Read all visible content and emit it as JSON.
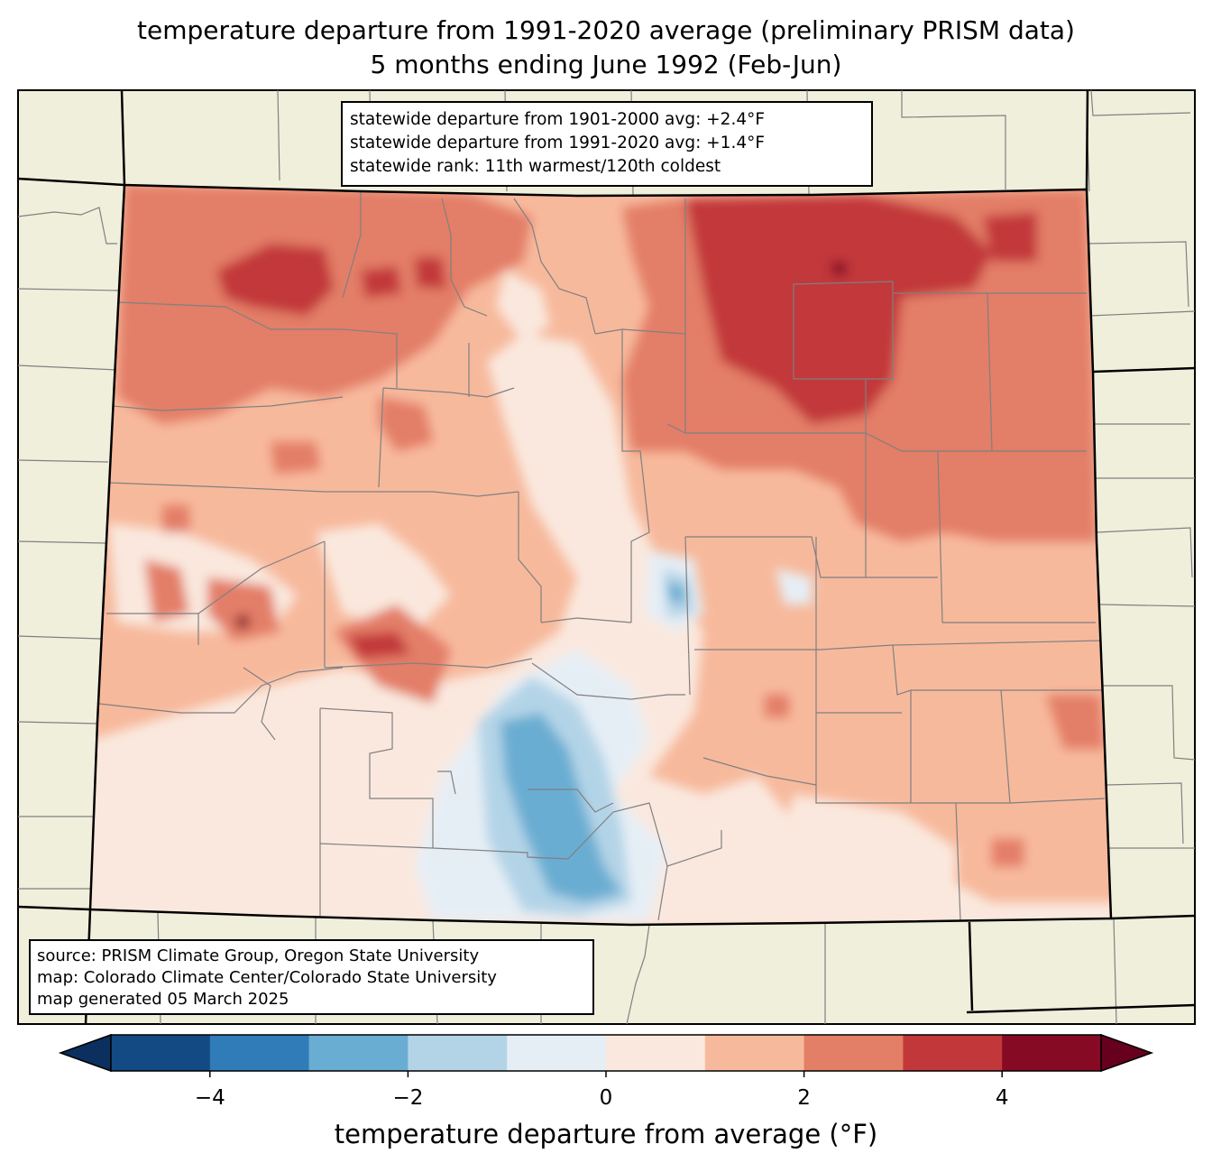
{
  "title": {
    "line1": "temperature departure from 1991-2020 average (preliminary PRISM data)",
    "line2": "5 months ending June 1992 (Feb-Jun)"
  },
  "stats_box": {
    "line1": "statewide departure from 1901-2000 avg: +2.4°F",
    "line2": "statewide departure from 1991-2020 avg: +1.4°F",
    "line3": "statewide rank: 11th warmest/120th coldest"
  },
  "credits_box": {
    "line1": "source: PRISM Climate Group, Oregon State University",
    "line2": "map: Colorado Climate Center/Colorado State University",
    "line3": "map generated 05 March 2025"
  },
  "colorbar": {
    "label": "temperature departure from average (°F)",
    "min": -5,
    "max": 5,
    "bins": [
      {
        "from": -5,
        "to": -4,
        "color": "#134a83"
      },
      {
        "from": -4,
        "to": -3,
        "color": "#2f7cb8"
      },
      {
        "from": -3,
        "to": -2,
        "color": "#6aadd2"
      },
      {
        "from": -2,
        "to": -1,
        "color": "#b3d4e7"
      },
      {
        "from": -1,
        "to": 0,
        "color": "#e6eef5"
      },
      {
        "from": 0,
        "to": 1,
        "color": "#fae8de"
      },
      {
        "from": 1,
        "to": 2,
        "color": "#f7b99c"
      },
      {
        "from": 2,
        "to": 3,
        "color": "#e37e67"
      },
      {
        "from": 3,
        "to": 4,
        "color": "#c2383a"
      },
      {
        "from": 4,
        "to": 5,
        "color": "#870a25"
      }
    ],
    "under_color": "#0b2f5e",
    "over_color": "#67001f",
    "ticks": [
      {
        "value": -4,
        "label": "−4"
      },
      {
        "value": -2,
        "label": "−2"
      },
      {
        "value": 0,
        "label": "0"
      },
      {
        "value": 2,
        "label": "2"
      },
      {
        "value": 4,
        "label": "4"
      }
    ]
  },
  "colors": {
    "land": "#f0efdc",
    "county_lines": "#808080",
    "state_lines": "#000000"
  }
}
